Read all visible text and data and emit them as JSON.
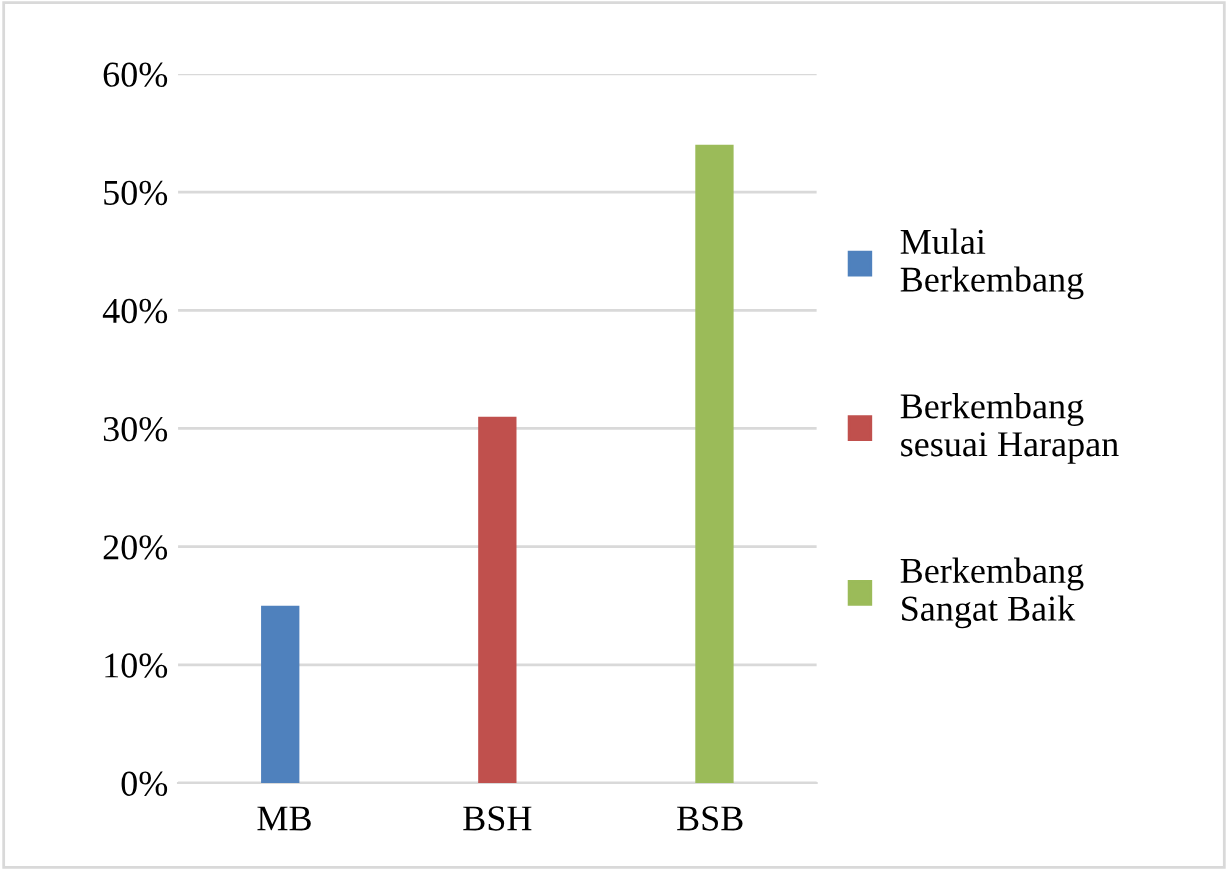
{
  "chart_data": {
    "type": "bar",
    "categories": [
      "MB",
      "BSH",
      "BSB"
    ],
    "series": [
      {
        "name": "Mulai Berkembang",
        "color": "#4f81bd",
        "values": [
          15,
          null,
          null
        ]
      },
      {
        "name": "Berkembang sesuai Harapan",
        "color": "#c0504d",
        "values": [
          null,
          31,
          null
        ]
      },
      {
        "name": "Berkembang Sangat Baik",
        "color": "#9bbb59",
        "values": [
          null,
          null,
          54
        ]
      }
    ],
    "ylim": [
      0,
      60
    ],
    "yticks": [
      {
        "value": 0,
        "label": "0%"
      },
      {
        "value": 10,
        "label": "10%"
      },
      {
        "value": 20,
        "label": "20%"
      },
      {
        "value": 30,
        "label": "30%"
      },
      {
        "value": 40,
        "label": "40%"
      },
      {
        "value": 50,
        "label": "50%"
      },
      {
        "value": 60,
        "label": "60%"
      }
    ],
    "grid": "y",
    "legend": "right"
  }
}
